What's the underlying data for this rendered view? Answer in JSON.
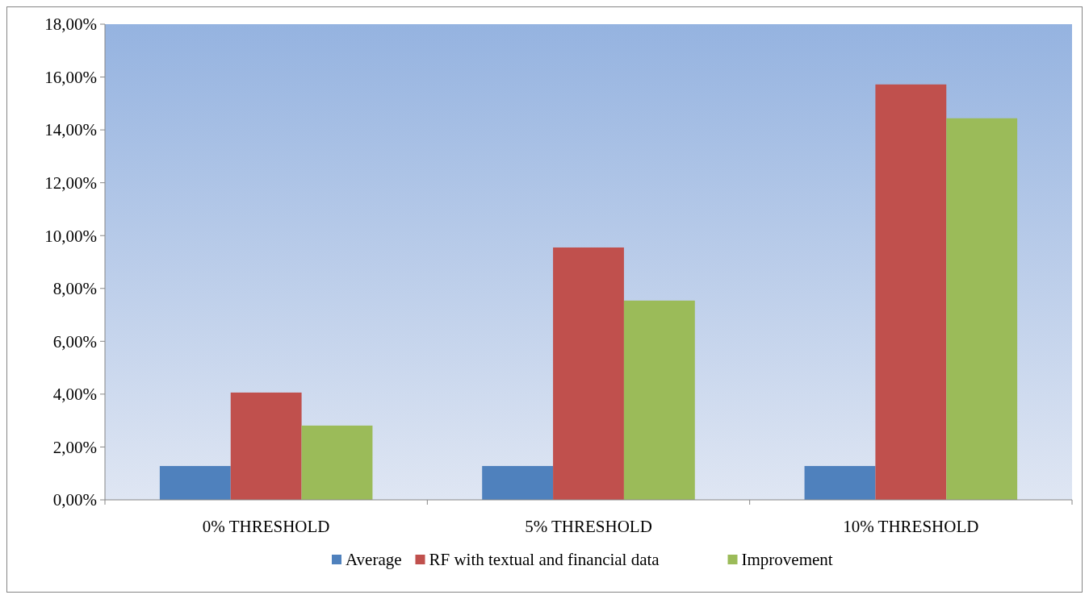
{
  "chart_data": {
    "type": "bar",
    "categories": [
      "0% THRESHOLD",
      "5% THRESHOLD",
      "10% THRESHOLD"
    ],
    "series": [
      {
        "name": "Average",
        "color": "#4f81bd",
        "values": [
          1.28,
          1.28,
          1.28
        ]
      },
      {
        "name": "RF with textual and financial data",
        "color": "#c0504d",
        "values": [
          4.06,
          9.55,
          15.72
        ]
      },
      {
        "name": "Improvement",
        "color": "#9bbb59",
        "values": [
          2.81,
          7.54,
          14.44
        ]
      }
    ],
    "ylim": [
      0,
      18
    ],
    "yticks": [
      {
        "value": 0,
        "label": "0,00%"
      },
      {
        "value": 2,
        "label": "2,00%"
      },
      {
        "value": 4,
        "label": "4,00%"
      },
      {
        "value": 6,
        "label": "6,00%"
      },
      {
        "value": 8,
        "label": "8,00%"
      },
      {
        "value": 10,
        "label": "10,00%"
      },
      {
        "value": 12,
        "label": "12,00%"
      },
      {
        "value": 14,
        "label": "14,00%"
      },
      {
        "value": 16,
        "label": "16,00%"
      },
      {
        "value": 18,
        "label": "18,00%"
      }
    ],
    "grid": false,
    "legend": "bottom"
  }
}
